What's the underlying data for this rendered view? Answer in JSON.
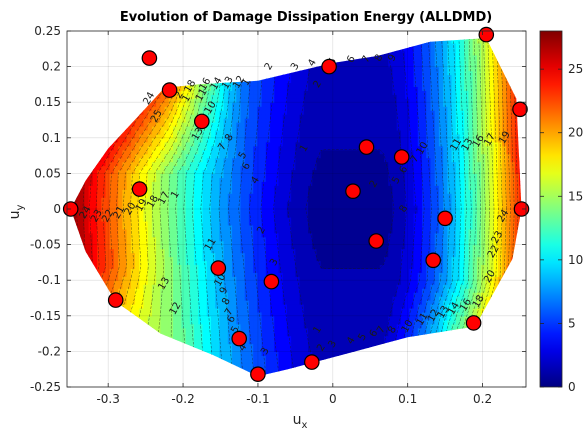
{
  "chart_data": {
    "type": "contour",
    "title": "Evolution of Damage Dissipation Energy (ALLDMD)",
    "xlabel": "u",
    "xlabel_sub": "x",
    "ylabel": "u",
    "ylabel_sub": "y",
    "xlim": [
      -0.355,
      0.258
    ],
    "ylim": [
      -0.25,
      0.25
    ],
    "xticks": [
      -0.3,
      -0.2,
      -0.1,
      0,
      0.1,
      0.2
    ],
    "xtick_labels": [
      "-0.3",
      "-0.2",
      "-0.1",
      "0",
      "0.1",
      "0.2"
    ],
    "yticks": [
      -0.25,
      -0.2,
      -0.15,
      -0.1,
      -0.05,
      0,
      0.05,
      0.1,
      0.15,
      0.2,
      0.25
    ],
    "ytick_labels": [
      "-0.25",
      "-0.2",
      "-0.15",
      "-0.1",
      "-0.05",
      "0",
      "0.05",
      "0.1",
      "0.15",
      "0.2",
      "0.25"
    ],
    "grid": true,
    "colormap": "jet",
    "colorbar": {
      "range": [
        0,
        28
      ],
      "ticks": [
        0,
        5,
        10,
        15,
        20,
        25
      ],
      "tick_labels": [
        "0",
        "5",
        "10",
        "15",
        "20",
        "25"
      ]
    },
    "contour_levels": [
      1,
      2,
      3,
      4,
      5,
      6,
      7,
      8,
      9,
      10,
      11,
      12,
      13,
      14,
      15,
      16,
      17,
      18,
      19,
      20,
      21,
      22,
      23,
      24,
      25,
      26,
      27
    ],
    "domain_boundary": [
      [
        -0.35,
        0.0
      ],
      [
        -0.33,
        0.04
      ],
      [
        -0.3,
        0.085
      ],
      [
        -0.26,
        0.13
      ],
      [
        -0.225,
        0.17
      ],
      [
        -0.18,
        0.175
      ],
      [
        -0.1,
        0.18
      ],
      [
        0.0,
        0.205
      ],
      [
        0.06,
        0.215
      ],
      [
        0.13,
        0.235
      ],
      [
        0.205,
        0.24
      ],
      [
        0.245,
        0.155
      ],
      [
        0.252,
        0.0
      ],
      [
        0.24,
        -0.07
      ],
      [
        0.19,
        -0.165
      ],
      [
        0.1,
        -0.18
      ],
      [
        0.03,
        -0.2
      ],
      [
        -0.06,
        -0.225
      ],
      [
        -0.1,
        -0.235
      ],
      [
        -0.16,
        -0.205
      ],
      [
        -0.23,
        -0.175
      ],
      [
        -0.29,
        -0.13
      ],
      [
        -0.33,
        -0.06
      ]
    ],
    "samples": [
      {
        "x": 0.205,
        "y": 0.245
      },
      {
        "x": -0.245,
        "y": 0.212
      },
      {
        "x": -0.218,
        "y": 0.167
      },
      {
        "x": -0.005,
        "y": 0.2
      },
      {
        "x": 0.25,
        "y": 0.14
      },
      {
        "x": -0.175,
        "y": 0.123
      },
      {
        "x": 0.045,
        "y": 0.087
      },
      {
        "x": 0.092,
        "y": 0.073
      },
      {
        "x": -0.258,
        "y": 0.028
      },
      {
        "x": 0.027,
        "y": 0.025
      },
      {
        "x": -0.35,
        "y": 0.0
      },
      {
        "x": 0.252,
        "y": 0.0
      },
      {
        "x": 0.15,
        "y": -0.013
      },
      {
        "x": 0.058,
        "y": -0.045
      },
      {
        "x": 0.134,
        "y": -0.072
      },
      {
        "x": -0.153,
        "y": -0.083
      },
      {
        "x": -0.082,
        "y": -0.102
      },
      {
        "x": -0.29,
        "y": -0.128
      },
      {
        "x": 0.188,
        "y": -0.16
      },
      {
        "x": -0.125,
        "y": -0.182
      },
      {
        "x": -0.028,
        "y": -0.215
      },
      {
        "x": -0.1,
        "y": -0.232
      }
    ],
    "contour_labels": [
      {
        "x": -0.085,
        "y": 0.2,
        "text": "2"
      },
      {
        "x": -0.05,
        "y": 0.2,
        "text": "3"
      },
      {
        "x": -0.027,
        "y": 0.205,
        "text": "4"
      },
      {
        "x": 0.0,
        "y": 0.207,
        "text": "5"
      },
      {
        "x": 0.025,
        "y": 0.21,
        "text": "6"
      },
      {
        "x": 0.045,
        "y": 0.21,
        "text": "7"
      },
      {
        "x": 0.062,
        "y": 0.212,
        "text": "8"
      },
      {
        "x": 0.08,
        "y": 0.212,
        "text": "9"
      },
      {
        "x": -0.115,
        "y": 0.178,
        "text": "1"
      },
      {
        "x": -0.125,
        "y": 0.178,
        "text": "12"
      },
      {
        "x": -0.14,
        "y": 0.177,
        "text": "13"
      },
      {
        "x": -0.155,
        "y": 0.176,
        "text": "14"
      },
      {
        "x": -0.17,
        "y": 0.175,
        "text": "16"
      },
      {
        "x": -0.19,
        "y": 0.172,
        "text": "18"
      },
      {
        "x": -0.175,
        "y": 0.16,
        "text": "11"
      },
      {
        "x": -0.163,
        "y": 0.142,
        "text": "10"
      },
      {
        "x": -0.195,
        "y": 0.155,
        "text": "1"
      },
      {
        "x": -0.205,
        "y": 0.16,
        "text": "2"
      },
      {
        "x": -0.245,
        "y": 0.155,
        "text": "24"
      },
      {
        "x": -0.235,
        "y": 0.13,
        "text": "25"
      },
      {
        "x": -0.18,
        "y": 0.105,
        "text": "13"
      },
      {
        "x": -0.147,
        "y": 0.087,
        "text": "7"
      },
      {
        "x": -0.138,
        "y": 0.1,
        "text": "8"
      },
      {
        "x": -0.115,
        "y": 0.06,
        "text": "6"
      },
      {
        "x": -0.12,
        "y": 0.075,
        "text": "5"
      },
      {
        "x": -0.103,
        "y": 0.04,
        "text": "4"
      },
      {
        "x": -0.038,
        "y": 0.085,
        "text": "1"
      },
      {
        "x": -0.02,
        "y": 0.175,
        "text": "2"
      },
      {
        "x": -0.095,
        "y": -0.03,
        "text": "2"
      },
      {
        "x": -0.078,
        "y": -0.075,
        "text": "3"
      },
      {
        "x": 0.055,
        "y": 0.035,
        "text": "2"
      },
      {
        "x": 0.085,
        "y": 0.04,
        "text": "5"
      },
      {
        "x": 0.095,
        "y": 0.055,
        "text": "6"
      },
      {
        "x": 0.11,
        "y": 0.07,
        "text": "7"
      },
      {
        "x": 0.12,
        "y": 0.085,
        "text": "10"
      },
      {
        "x": 0.095,
        "y": 0.0,
        "text": "8"
      },
      {
        "x": 0.165,
        "y": 0.09,
        "text": "11"
      },
      {
        "x": 0.18,
        "y": 0.09,
        "text": "13"
      },
      {
        "x": 0.195,
        "y": 0.095,
        "text": "16"
      },
      {
        "x": 0.21,
        "y": 0.097,
        "text": "17"
      },
      {
        "x": 0.23,
        "y": 0.1,
        "text": "19"
      },
      {
        "x": -0.33,
        "y": -0.005,
        "text": "24"
      },
      {
        "x": -0.315,
        "y": -0.01,
        "text": "23"
      },
      {
        "x": -0.3,
        "y": -0.01,
        "text": "22"
      },
      {
        "x": -0.285,
        "y": -0.005,
        "text": "21"
      },
      {
        "x": -0.27,
        "y": 0.0,
        "text": "20"
      },
      {
        "x": -0.255,
        "y": 0.005,
        "text": "19"
      },
      {
        "x": -0.24,
        "y": 0.01,
        "text": "18"
      },
      {
        "x": -0.225,
        "y": 0.015,
        "text": "17"
      },
      {
        "x": -0.21,
        "y": 0.02,
        "text": "1"
      },
      {
        "x": -0.163,
        "y": -0.05,
        "text": "11"
      },
      {
        "x": -0.15,
        "y": -0.1,
        "text": "10"
      },
      {
        "x": -0.145,
        "y": -0.115,
        "text": "9"
      },
      {
        "x": -0.142,
        "y": -0.13,
        "text": "8"
      },
      {
        "x": -0.138,
        "y": -0.145,
        "text": "7"
      },
      {
        "x": -0.135,
        "y": -0.155,
        "text": "6"
      },
      {
        "x": -0.13,
        "y": -0.17,
        "text": "5"
      },
      {
        "x": -0.21,
        "y": -0.14,
        "text": "12"
      },
      {
        "x": -0.225,
        "y": -0.105,
        "text": "13"
      },
      {
        "x": -0.12,
        "y": -0.195,
        "text": "4"
      },
      {
        "x": -0.09,
        "y": -0.2,
        "text": "3"
      },
      {
        "x": -0.02,
        "y": -0.17,
        "text": "1"
      },
      {
        "x": -0.015,
        "y": -0.195,
        "text": "2"
      },
      {
        "x": 0.0,
        "y": -0.19,
        "text": "3"
      },
      {
        "x": 0.025,
        "y": -0.185,
        "text": "4"
      },
      {
        "x": 0.04,
        "y": -0.18,
        "text": "5"
      },
      {
        "x": 0.055,
        "y": -0.175,
        "text": "6"
      },
      {
        "x": 0.065,
        "y": -0.17,
        "text": "7"
      },
      {
        "x": 0.08,
        "y": -0.17,
        "text": "8"
      },
      {
        "x": 0.1,
        "y": -0.165,
        "text": "10"
      },
      {
        "x": 0.12,
        "y": -0.155,
        "text": "11"
      },
      {
        "x": 0.135,
        "y": -0.15,
        "text": "12"
      },
      {
        "x": 0.148,
        "y": -0.145,
        "text": "13"
      },
      {
        "x": 0.162,
        "y": -0.14,
        "text": "14"
      },
      {
        "x": 0.178,
        "y": -0.135,
        "text": "16"
      },
      {
        "x": 0.195,
        "y": -0.13,
        "text": "18"
      },
      {
        "x": 0.21,
        "y": -0.095,
        "text": "20"
      },
      {
        "x": 0.215,
        "y": -0.06,
        "text": "22"
      },
      {
        "x": 0.22,
        "y": -0.04,
        "text": "23"
      },
      {
        "x": 0.228,
        "y": -0.01,
        "text": "24"
      }
    ]
  }
}
